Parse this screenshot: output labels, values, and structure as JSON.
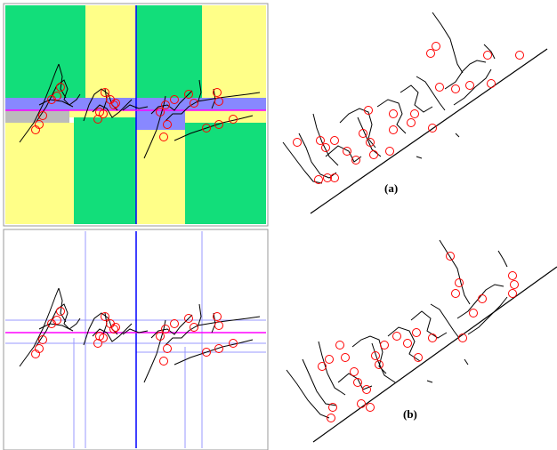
{
  "figure": {
    "caption_a": "(a)",
    "caption_b": "(b)"
  },
  "colors": {
    "green": "#12DE7A",
    "yellow": "#FFFF88",
    "blue_band": "#8888FF",
    "gray_band": "#BBBBBB",
    "axis_blue": "#0000FF",
    "guide_blue": "#9999FF",
    "baseline_magenta": "#FF00FF",
    "marker_red": "#FF0000",
    "stroke": "#000000"
  },
  "panels": [
    {
      "id": "top-left",
      "description_icon": "colored-segmentation-map"
    },
    {
      "id": "bottom-left",
      "description_icon": "line-guide-map"
    },
    {
      "id": "top-right",
      "description_icon": "skewed-handwriting-a"
    },
    {
      "id": "bottom-right",
      "description_icon": "skewed-handwriting-b"
    }
  ]
}
